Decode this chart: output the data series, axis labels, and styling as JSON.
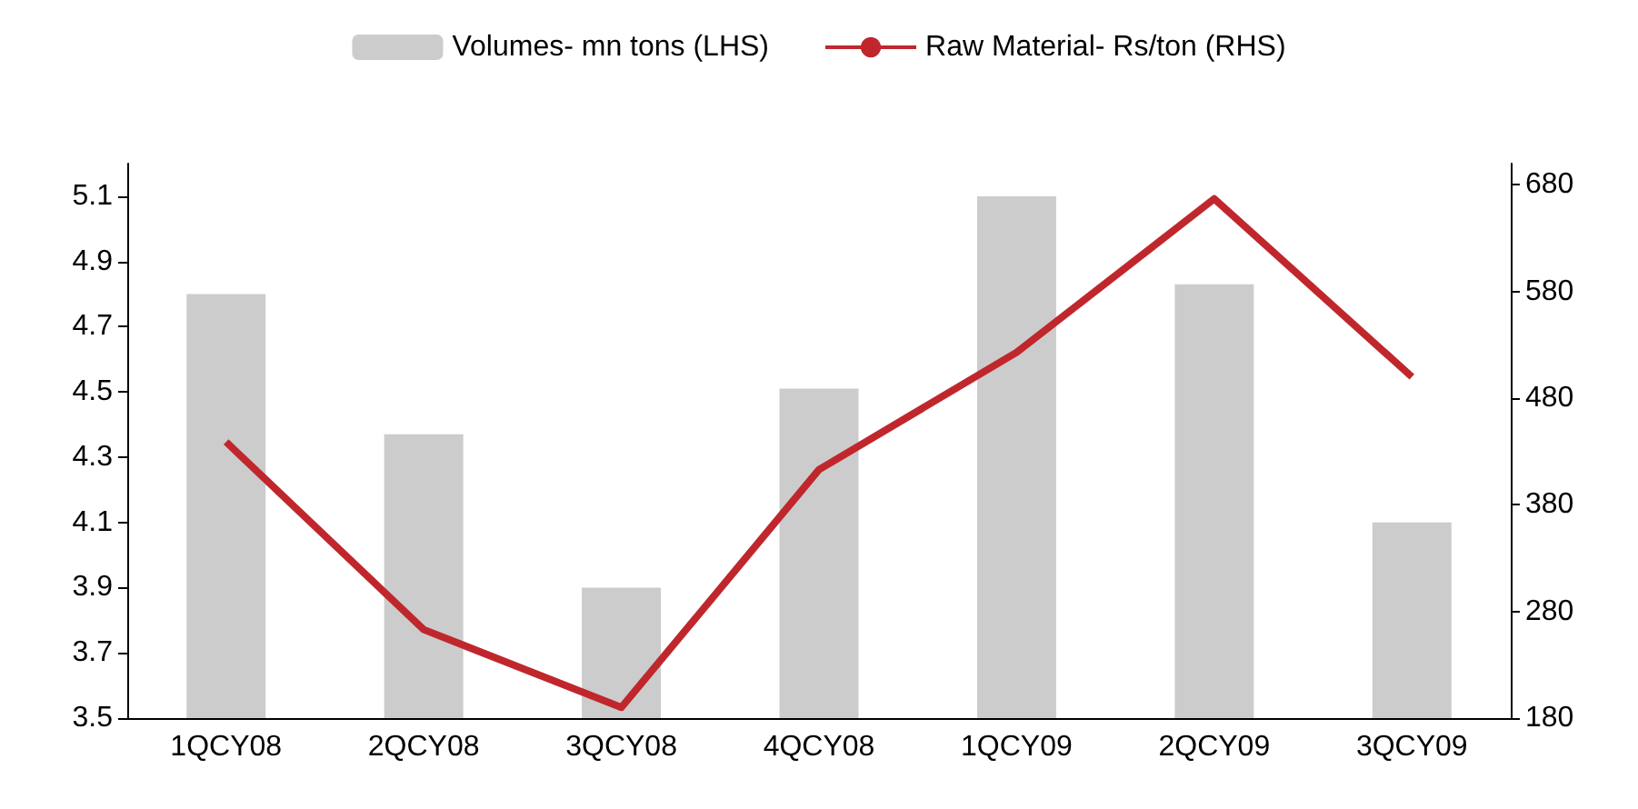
{
  "chart_data": {
    "type": "bar",
    "categories": [
      "1QCY08",
      "2QCY08",
      "3QCY08",
      "4QCY08",
      "1QCY09",
      "2QCY09",
      "3QCY09"
    ],
    "series": [
      {
        "name": "Volumes- mn tons (LHS)",
        "color": "#cccccc",
        "values": [
          4.8,
          4.37,
          3.9,
          4.51,
          5.1,
          4.83,
          4.1
        ]
      },
      {
        "name": "Raw Material- Rs/ton (RHS)",
        "type": "line",
        "axis": "y2",
        "color": "#c0272d",
        "values": [
          439,
          263,
          190,
          413,
          523,
          667,
          500
        ]
      }
    ],
    "ylim": [
      3.5,
      5.2
    ],
    "yticks": [
      3.5,
      3.7,
      3.9,
      4.1,
      4.3,
      4.5,
      4.7,
      4.9,
      5.1
    ],
    "y2lim": [
      180,
      700
    ],
    "y2ticks": [
      180,
      280,
      380,
      480,
      580,
      680
    ],
    "legend": "top",
    "grid": false,
    "marker": "none"
  }
}
